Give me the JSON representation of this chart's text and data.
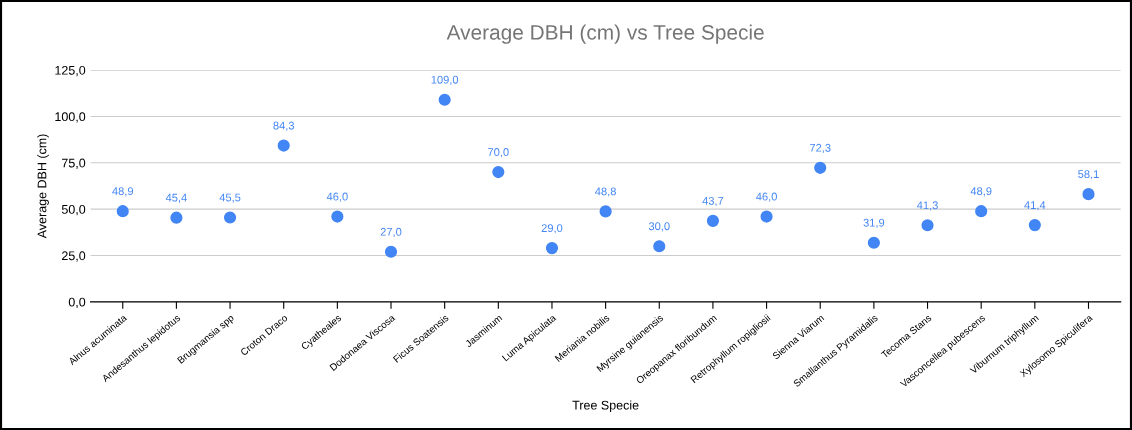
{
  "chart_data": {
    "type": "scatter",
    "title": "Average DBH (cm) vs Tree Specie",
    "xlabel": "Tree Specie",
    "ylabel": "Average DBH (cm)",
    "categories": [
      "Alnus acuminata",
      "Andesanthus lepidotus",
      "Brugmansia spp",
      "Croton Draco",
      "Cyatheales",
      "Dodonaea Viscosa",
      "Ficus Soatensis",
      "Jasminum",
      "Luma Apiculata",
      "Meriania nobilis",
      "Myrsine guianensis",
      "Oreopanax floribundum",
      "Retrophyllum ropigliosii",
      "Sienna Viarum",
      "Smallanthus Pyramidalis",
      "Tecoma Stans",
      "Vasconcellea pubescens",
      "Viburnum triphyllum",
      "Xylosomo Spiculifera"
    ],
    "series": [
      {
        "color": "#4285f4",
        "values": [
          48.9,
          45.4,
          45.5,
          84.3,
          46.0,
          27.0,
          109.0,
          70.0,
          29.0,
          48.8,
          30.0,
          43.7,
          46.0,
          72.3,
          31.9,
          41.3,
          48.9,
          41.4,
          58.1
        ],
        "value_labels": [
          "48,9",
          "45,4",
          "45,5",
          "84,3",
          "46,0",
          "27,0",
          "109,0",
          "70,0",
          "29,0",
          "48,8",
          "30,0",
          "43,7",
          "46,0",
          "72,3",
          "31,9",
          "41,3",
          "48,9",
          "41,4",
          "58,1"
        ]
      }
    ],
    "ylim": [
      0,
      125
    ],
    "yticks": [
      {
        "value": 0,
        "label": "0,0"
      },
      {
        "value": 25,
        "label": "25,0"
      },
      {
        "value": 50,
        "label": "50,0"
      },
      {
        "value": 75,
        "label": "75,0"
      },
      {
        "value": 100,
        "label": "100,0"
      },
      {
        "value": 125,
        "label": "125,0"
      }
    ],
    "grid": "y",
    "marker": "circle"
  }
}
